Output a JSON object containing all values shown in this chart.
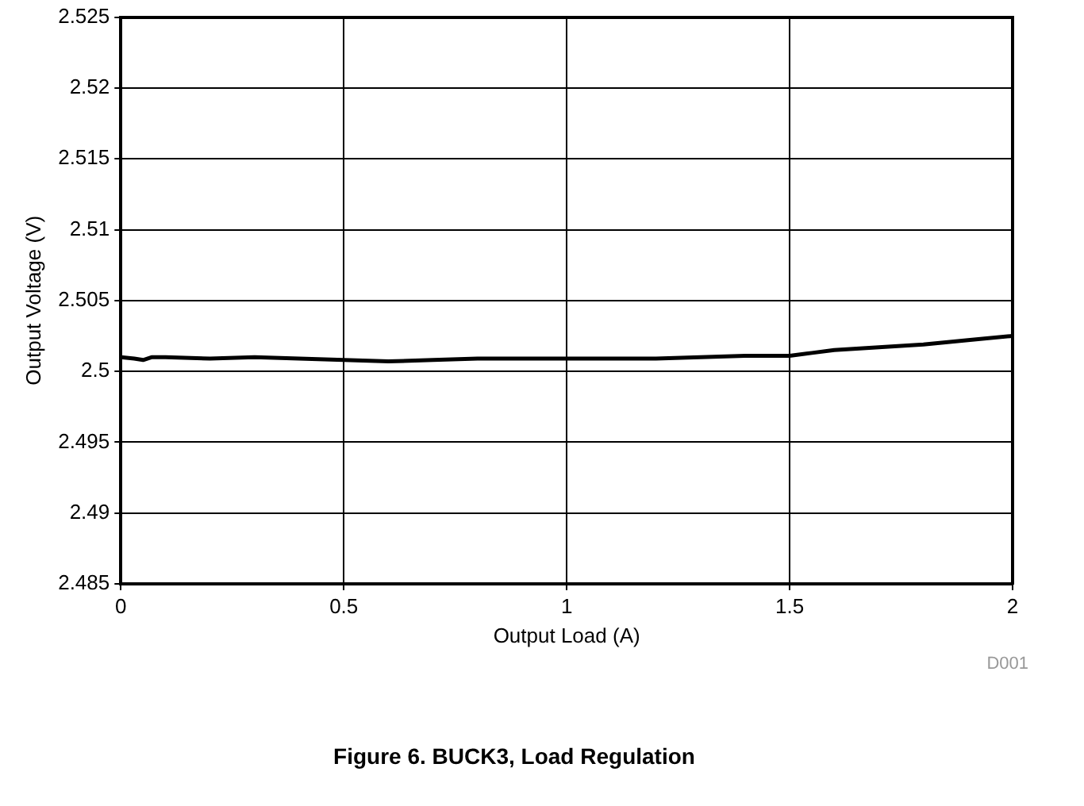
{
  "chart_data": {
    "type": "line",
    "title": "Figure 6. BUCK3, Load Regulation",
    "xlabel": "Output Load (A)",
    "ylabel": "Output Voltage (V)",
    "annotations": [
      "D001"
    ],
    "series": [
      {
        "color": "#000000",
        "x": [
          0,
          0.03,
          0.05,
          0.07,
          0.1,
          0.2,
          0.3,
          0.4,
          0.5,
          0.6,
          0.7,
          0.8,
          0.9,
          1.0,
          1.1,
          1.2,
          1.3,
          1.4,
          1.5,
          1.55,
          1.6,
          1.7,
          1.8,
          1.9,
          2.0
        ],
        "values": [
          2.501,
          2.5009,
          2.5008,
          2.501,
          2.501,
          2.5009,
          2.501,
          2.5009,
          2.5008,
          2.5007,
          2.5008,
          2.5009,
          2.5009,
          2.5009,
          2.5009,
          2.5009,
          2.501,
          2.5011,
          2.5011,
          2.5013,
          2.5015,
          2.5017,
          2.5019,
          2.5022,
          2.5025
        ]
      }
    ],
    "xlim": [
      0,
      2
    ],
    "xticks": [
      0,
      0.5,
      1,
      1.5,
      2
    ],
    "ylim": [
      2.485,
      2.525
    ],
    "yticks": [
      2.485,
      2.49,
      2.495,
      2.5,
      2.505,
      2.51,
      2.515,
      2.52,
      2.525
    ],
    "grid": true,
    "marker": "none",
    "line_style": "solid",
    "legend": false
  }
}
